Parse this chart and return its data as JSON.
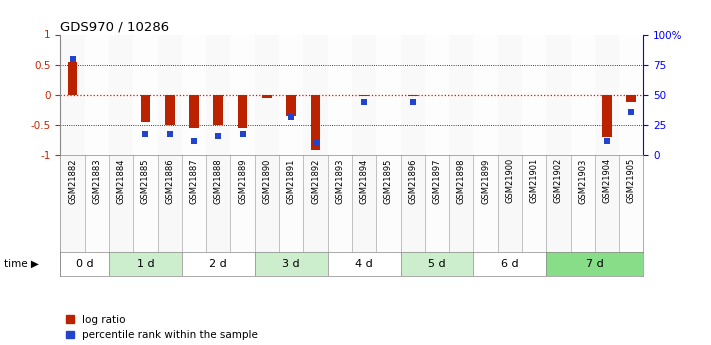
{
  "title": "GDS970 / 10286",
  "samples": [
    "GSM21882",
    "GSM21883",
    "GSM21884",
    "GSM21885",
    "GSM21886",
    "GSM21887",
    "GSM21888",
    "GSM21889",
    "GSM21890",
    "GSM21891",
    "GSM21892",
    "GSM21893",
    "GSM21894",
    "GSM21895",
    "GSM21896",
    "GSM21897",
    "GSM21898",
    "GSM21899",
    "GSM21900",
    "GSM21901",
    "GSM21902",
    "GSM21903",
    "GSM21904",
    "GSM21905"
  ],
  "log_ratio": [
    0.55,
    0.0,
    0.0,
    -0.45,
    -0.5,
    -0.55,
    -0.5,
    -0.55,
    -0.05,
    -0.35,
    -0.92,
    0.0,
    -0.02,
    0.0,
    -0.02,
    0.0,
    0.0,
    0.0,
    0.0,
    0.0,
    0.0,
    0.0,
    -0.7,
    -0.12
  ],
  "pct_rank": [
    80,
    0,
    0,
    18,
    18,
    12,
    16,
    18,
    0,
    32,
    10,
    0,
    44,
    0,
    44,
    0,
    0,
    0,
    0,
    0,
    0,
    0,
    12,
    36
  ],
  "time_groups": [
    {
      "label": "0 d",
      "start": 0,
      "end": 2,
      "color": "#ffffff"
    },
    {
      "label": "1 d",
      "start": 2,
      "end": 5,
      "color": "#cceecc"
    },
    {
      "label": "2 d",
      "start": 5,
      "end": 8,
      "color": "#ffffff"
    },
    {
      "label": "3 d",
      "start": 8,
      "end": 11,
      "color": "#cceecc"
    },
    {
      "label": "4 d",
      "start": 11,
      "end": 14,
      "color": "#ffffff"
    },
    {
      "label": "5 d",
      "start": 14,
      "end": 17,
      "color": "#cceecc"
    },
    {
      "label": "6 d",
      "start": 17,
      "end": 20,
      "color": "#ffffff"
    },
    {
      "label": "7 d",
      "start": 20,
      "end": 24,
      "color": "#88dd88"
    }
  ],
  "sample_bg_alternating": [
    "#e8e8e8",
    "#f8f8f8"
  ],
  "bar_color": "#bb2200",
  "square_color": "#2244cc",
  "bg_color": "#ffffff",
  "ylim_left": [
    -1,
    1
  ],
  "ylim_right": [
    0,
    100
  ],
  "yticks_left": [
    -1,
    -0.5,
    0,
    0.5,
    1
  ],
  "yticks_right": [
    0,
    25,
    50,
    75,
    100
  ],
  "ytick_labels_right": [
    "0",
    "25",
    "50",
    "75",
    "100%"
  ],
  "ytick_labels_left": [
    "-1",
    "-0.5",
    "0",
    "0.5",
    "1"
  ]
}
